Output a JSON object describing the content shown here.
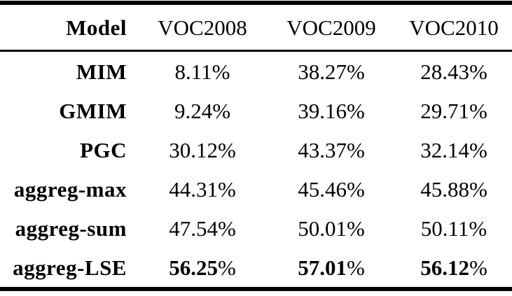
{
  "colors": {
    "text": "#000000",
    "background": "#ffffff",
    "rule": "#000000"
  },
  "table": {
    "header": {
      "model": "Model",
      "cols": [
        "VOC2008",
        "VOC2009",
        "VOC2010"
      ]
    },
    "percent": "%",
    "rows": [
      {
        "model": "MIM",
        "values": [
          "8.11",
          "38.27",
          "28.43"
        ],
        "bold": false
      },
      {
        "model": "GMIM",
        "values": [
          "9.24",
          "39.16",
          "29.71"
        ],
        "bold": false
      },
      {
        "model": "PGC",
        "values": [
          "30.12",
          "43.37",
          "32.14"
        ],
        "bold": false
      },
      {
        "model": "aggreg-max",
        "values": [
          "44.31",
          "45.46",
          "45.88"
        ],
        "bold": false
      },
      {
        "model": "aggreg-sum",
        "values": [
          "47.54",
          "50.01",
          "50.11"
        ],
        "bold": false
      },
      {
        "model": "aggreg-LSE",
        "values": [
          "56.25",
          "57.01",
          "56.12"
        ],
        "bold": true
      }
    ]
  }
}
